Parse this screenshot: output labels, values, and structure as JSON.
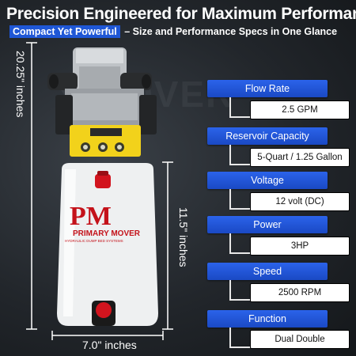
{
  "header": {
    "title": "Precision Engineered for Maximum Performance",
    "tag": "Compact Yet Powerful",
    "subtitle": " – Size and Performance Specs in One Glance"
  },
  "dimensions": {
    "height_total": "20.25\" inches",
    "height_reservoir": "11.5\" inches",
    "width": "7.0\" inches"
  },
  "logo": {
    "letters": "PM",
    "brand": "PRIMARY MOVER",
    "tagline": "HYDRAULIC DUMP BED SYSTEMS"
  },
  "specs": [
    {
      "label": "Flow Rate",
      "value": "2.5 GPM"
    },
    {
      "label": "Reservoir Capacity",
      "value": "5-Quart / 1.25 Gallon"
    },
    {
      "label": "Voltage",
      "value": "12 volt (DC)"
    },
    {
      "label": "Power",
      "value": "3HP"
    },
    {
      "label": "Speed",
      "value": "2500 RPM"
    },
    {
      "label": "Function",
      "value": "Dual Double"
    }
  ],
  "colors": {
    "accent": "#2b63ea",
    "yellow_block": "#f2d21b",
    "cap_red": "#d2141e"
  }
}
